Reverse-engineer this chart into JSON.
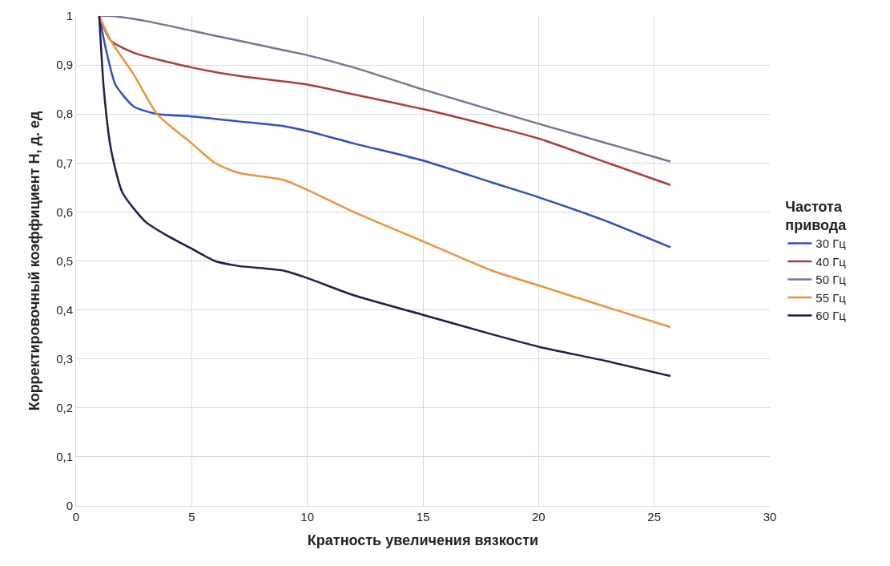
{
  "chart_data": {
    "type": "line",
    "xlabel": "Кратность увеличения вязкости",
    "ylabel": "Корректировочный коэффициент Н, д. ед",
    "legend_title": "Частота\nпривода",
    "legend": "right",
    "grid": true,
    "marker": "none",
    "line_style": "solid",
    "xlim": [
      0,
      30
    ],
    "xticks": [
      0,
      5,
      10,
      15,
      20,
      25,
      30
    ],
    "ylim": [
      0,
      1
    ],
    "yticks": [
      0,
      {
        "value": 0.1,
        "label": "0,1"
      },
      {
        "value": 0.2,
        "label": "0,2"
      },
      {
        "value": 0.3,
        "label": "0,3"
      },
      {
        "value": 0.4,
        "label": "0,4"
      },
      {
        "value": 0.5,
        "label": "0,5"
      },
      {
        "value": 0.6,
        "label": "0,6"
      },
      {
        "value": 0.7,
        "label": "0,7"
      },
      {
        "value": 0.8,
        "label": "0,8"
      },
      {
        "value": 0.9,
        "label": "0,9"
      },
      1
    ],
    "series": [
      {
        "name": "30 Гц",
        "color": "#2e4fbf",
        "x": [
          1,
          1.3,
          1.7,
          2.5,
          3.5,
          5,
          7,
          9,
          10,
          12,
          15,
          18,
          20,
          23,
          25.7
        ],
        "values": [
          1,
          0.93,
          0.86,
          0.815,
          0.8,
          0.795,
          0.785,
          0.775,
          0.765,
          0.74,
          0.705,
          0.66,
          0.63,
          0.58,
          0.528
        ]
      },
      {
        "name": "40 Гц",
        "color": "#b03a3a",
        "x": [
          1,
          1.5,
          2.5,
          5,
          7,
          10,
          12,
          15,
          18,
          20,
          23,
          25.7
        ],
        "values": [
          1,
          0.95,
          0.925,
          0.895,
          0.878,
          0.86,
          0.84,
          0.81,
          0.775,
          0.75,
          0.7,
          0.655
        ]
      },
      {
        "name": "50 Гц",
        "color": "#7b7390",
        "x": [
          1,
          1.5,
          3,
          5,
          7,
          9,
          10,
          12,
          15,
          20,
          25.7
        ],
        "values": [
          1,
          1.0,
          0.99,
          0.97,
          0.95,
          0.93,
          0.92,
          0.895,
          0.85,
          0.78,
          0.703
        ]
      },
      {
        "name": "55 Гц",
        "color": "#e8953a",
        "x": [
          1,
          1.5,
          2.5,
          3.5,
          5,
          6,
          7,
          9,
          10,
          12,
          15,
          18,
          20,
          23,
          25.7
        ],
        "values": [
          1,
          0.95,
          0.88,
          0.8,
          0.74,
          0.7,
          0.68,
          0.665,
          0.645,
          0.6,
          0.54,
          0.48,
          0.45,
          0.405,
          0.365
        ]
      },
      {
        "name": "60 Гц",
        "color": "#1b1f4a",
        "x": [
          1,
          1.2,
          1.5,
          2,
          3,
          4,
          5,
          6,
          7,
          9,
          10,
          12,
          15,
          18,
          20,
          23,
          25.7
        ],
        "values": [
          1,
          0.85,
          0.73,
          0.64,
          0.58,
          0.55,
          0.525,
          0.5,
          0.49,
          0.48,
          0.465,
          0.43,
          0.39,
          0.35,
          0.325,
          0.295,
          0.265
        ]
      }
    ]
  }
}
